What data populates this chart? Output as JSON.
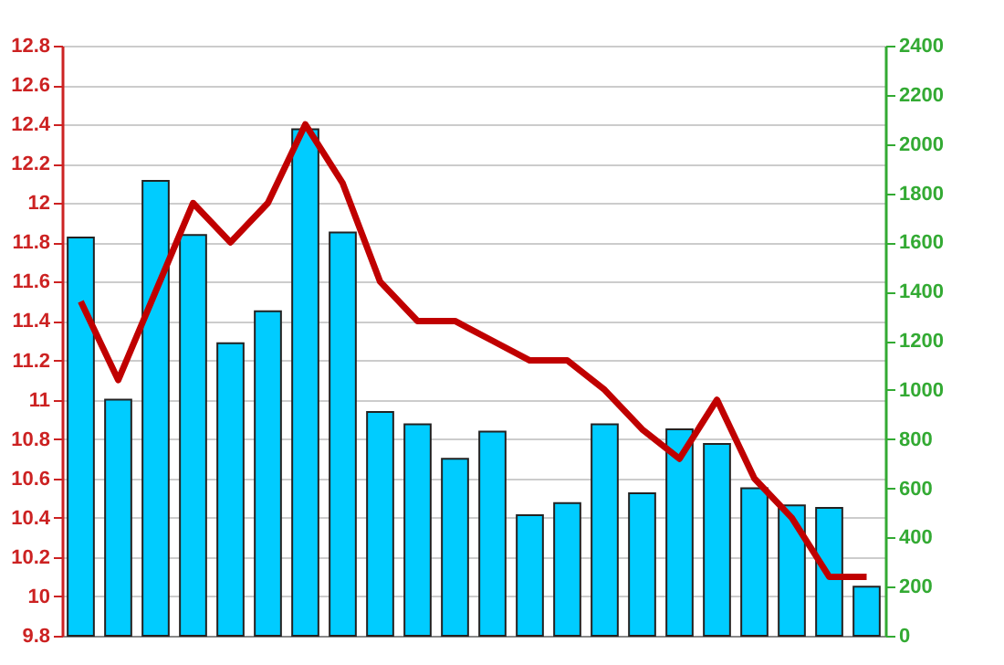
{
  "chart_data": {
    "type": "bar",
    "categories": [
      null,
      null,
      null,
      null,
      null,
      null,
      null,
      null,
      null,
      null,
      null,
      null,
      null,
      null,
      null,
      null,
      null,
      null,
      null,
      null,
      null,
      null
    ],
    "series": [
      {
        "axis": "y2",
        "color": "#00ccff",
        "values": [
          1620,
          960,
          1850,
          1630,
          1190,
          1320,
          2060,
          1640,
          910,
          860,
          720,
          830,
          490,
          540,
          860,
          580,
          840,
          780,
          600,
          530,
          520,
          200
        ]
      },
      {
        "type": "line",
        "axis": "y",
        "color": "#c00000",
        "values": [
          11.5,
          11.1,
          11.55,
          12.0,
          11.8,
          12.0,
          12.4,
          12.1,
          11.6,
          11.4,
          11.4,
          11.3,
          11.2,
          11.2,
          11.05,
          10.85,
          10.7,
          11.0,
          10.6,
          10.4,
          10.1,
          10.1
        ]
      }
    ],
    "ylim": [
      9.8,
      12.8
    ],
    "yticks": [
      9.8,
      10,
      10.2,
      10.4,
      10.6,
      10.8,
      11,
      11.2,
      11.4,
      11.6,
      11.8,
      12,
      12.2,
      12.4,
      12.6,
      12.8
    ],
    "y2lim": [
      0,
      2400
    ],
    "y2ticks": [
      0,
      200,
      400,
      600,
      800,
      1000,
      1200,
      1400,
      1600,
      1800,
      2000,
      2200,
      2400
    ],
    "grid": "y",
    "marker": "none",
    "line_style": "solid"
  }
}
